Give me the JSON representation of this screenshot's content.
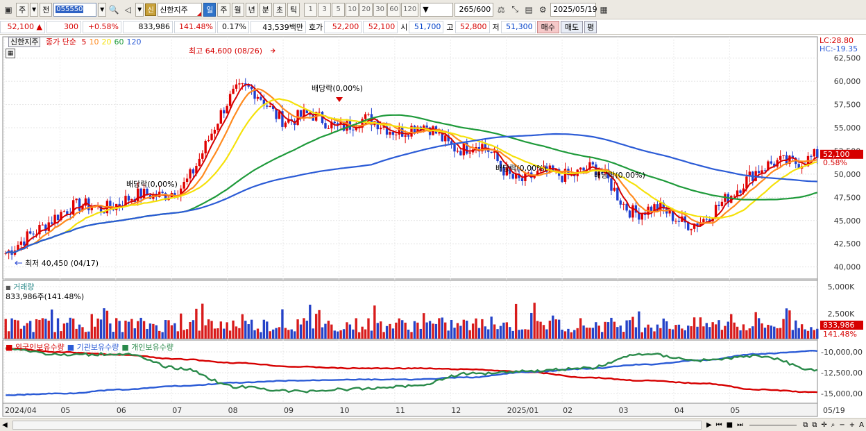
{
  "toolbar": {
    "period_main": "주",
    "period_prev": "전",
    "stock_code": "055550",
    "stock_badge": "신",
    "stock_name": "신한지주",
    "periods": [
      "일",
      "주",
      "월",
      "년",
      "분",
      "초",
      "틱"
    ],
    "active_period": "일",
    "minute_options": [
      "1",
      "3",
      "5",
      "10",
      "20",
      "30",
      "60",
      "120"
    ],
    "count": "265",
    "count_total": "/600",
    "date": "2025/05/19"
  },
  "quote": {
    "price": "52,100",
    "change": "300",
    "change_pct": "+0.58%",
    "volume": "833,986",
    "volume_ratio": "141.48%",
    "turnover": "0.17%",
    "amount": "43,539백만",
    "bid_label": "호가",
    "bid1": "52,200",
    "bid2": "52,100",
    "open_label": "시",
    "open": "51,700",
    "high_label": "고",
    "high": "52,800",
    "low_label": "저",
    "low": "51,300",
    "buy_label": "매수",
    "sell_label": "매도",
    "avg_label": "평"
  },
  "price_panel": {
    "stock_tag": "신한지주",
    "legend_prefix": "종가 단순",
    "ma_periods": [
      "5",
      "10",
      "20",
      "60",
      "120"
    ],
    "ma_colors": [
      "#d60000",
      "#ff8a1e",
      "#f5e10a",
      "#1e9a3a",
      "#2b5bd6"
    ],
    "lc": "LC:28.80",
    "hc": "HC:-19.35",
    "max_label": "최고 64,600 (08/26)",
    "min_label": "최저 40,450 (04/17)",
    "dividend_label": "배당락(0,00%)",
    "dividend_labels": [
      "배당락(0,00%)",
      "배당락(0,00%)",
      "배당락(0,00%)",
      "배당락(0.00%)"
    ],
    "last_price": "52,100",
    "last_change": "0.58%",
    "y_ticks": [
      "62,500",
      "60,000",
      "57,500",
      "55,000",
      "52,500",
      "50,000",
      "47,500",
      "45,000",
      "42,500",
      "40,000"
    ]
  },
  "volume_panel": {
    "title": "거래량",
    "value": "833,986주(141.48%)",
    "y_ticks": [
      "5,000K",
      "2,500K"
    ],
    "last_value": "833,986",
    "last_ratio": "141.48%"
  },
  "holding_panel": {
    "series": [
      "외국인보유수량",
      "기관보유수량",
      "개인보유수량"
    ],
    "colors": [
      "#d60000",
      "#2b5bd6",
      "#2a8a4a"
    ],
    "y_ticks": [
      "-10,000,00",
      "-12,500,00",
      "-15,000,00"
    ]
  },
  "x_axis": {
    "labels": [
      "2024/04",
      "05",
      "06",
      "07",
      "08",
      "09",
      "10",
      "11",
      "12",
      "2025/01",
      "02",
      "03",
      "04",
      "05"
    ],
    "end_label": "05/19"
  },
  "chart_data": {
    "type": "line",
    "title": "",
    "xlabel": "",
    "ylabel": "",
    "x": [
      "2024/04",
      "05",
      "06",
      "07",
      "08",
      "09",
      "10",
      "11",
      "12",
      "2025/01",
      "02",
      "03",
      "04",
      "05",
      "05/19"
    ],
    "series": [
      {
        "name": "종가",
        "values": [
          41500,
          46000,
          47000,
          48500,
          59000,
          56000,
          55500,
          55000,
          53000,
          49500,
          50500,
          46000,
          45000,
          50500,
          52100
        ]
      }
    ],
    "ylim": [
      39000,
      64500
    ]
  }
}
